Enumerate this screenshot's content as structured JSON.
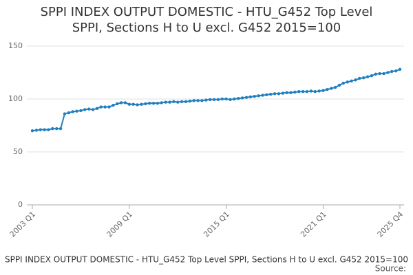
{
  "chart_data": {
    "type": "line",
    "title": "SPPI INDEX OUTPUT DOMESTIC - HTU_G452 Top Level SPPI, Sections H to U excl. G452 2015=100",
    "source": "Source:",
    "categories": [
      "2003 Q1",
      null,
      null,
      null,
      null,
      null,
      null,
      null,
      null,
      null,
      null,
      null,
      null,
      null,
      null,
      null,
      null,
      null,
      null,
      null,
      null,
      null,
      null,
      null,
      "2009 Q1",
      null,
      null,
      null,
      null,
      null,
      null,
      null,
      null,
      null,
      null,
      null,
      null,
      null,
      null,
      null,
      null,
      null,
      null,
      null,
      null,
      null,
      null,
      null,
      "2015 Q1",
      null,
      null,
      null,
      null,
      null,
      null,
      null,
      null,
      null,
      null,
      null,
      null,
      null,
      null,
      null,
      null,
      null,
      null,
      null,
      null,
      null,
      null,
      null,
      "2021 Q1",
      null,
      null,
      null,
      null,
      null,
      null,
      null,
      null,
      null,
      null,
      null,
      null,
      null,
      null,
      null,
      null,
      null,
      null,
      "2025 Q4"
    ],
    "series": [
      {
        "name": "SPPI INDEX OUTPUT DOMESTIC - HTU_G452 Top Level SPPI, Sections H to U excl. G452 2015=100",
        "color": "#1f7fc0",
        "values": [
          70,
          70.5,
          71,
          71,
          71,
          72,
          72,
          72,
          86,
          87,
          88,
          88.5,
          89,
          90,
          90.5,
          90,
          91,
          92.5,
          92.5,
          92.5,
          94,
          95.5,
          96.5,
          96.5,
          95,
          95,
          94.5,
          95,
          95.5,
          96,
          96,
          96,
          96.5,
          97,
          97,
          97.5,
          97,
          97.5,
          97.5,
          98,
          98.5,
          98.5,
          98.5,
          99,
          99.5,
          99.5,
          99.5,
          100,
          100,
          99.5,
          100,
          100.5,
          101,
          101.5,
          102,
          102.5,
          103,
          103.5,
          104,
          104.5,
          105,
          105,
          105.5,
          106,
          106,
          106.5,
          107,
          107,
          107,
          107.5,
          107,
          107.5,
          108,
          109,
          110,
          111,
          113,
          115,
          116,
          117,
          118,
          119.5,
          120,
          121,
          122,
          123.5,
          124,
          124,
          125,
          126,
          126.5,
          128
        ]
      }
    ],
    "ylim": [
      0,
      150
    ],
    "yticks": [
      0,
      50,
      100,
      150
    ],
    "grid": true
  }
}
